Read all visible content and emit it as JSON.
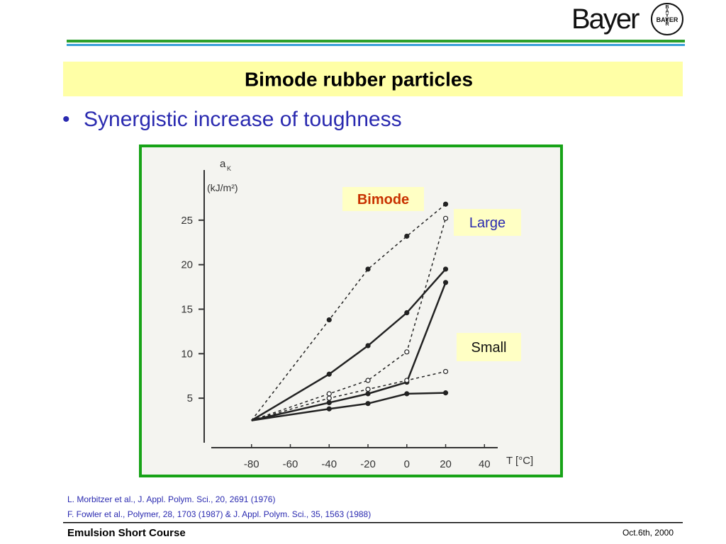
{
  "logo": {
    "name": "Bayer",
    "emblem": "BAYER"
  },
  "header": {
    "title": "Bimode rubber particles",
    "bullet": "Synergistic increase of toughness"
  },
  "chart_data": {
    "type": "line",
    "y_label_symbol": "a",
    "y_label_subscript": "K",
    "y_label_unit": "(kJ/m²)",
    "x_label": "T [°C]",
    "xlim": [
      -100,
      45
    ],
    "xticks": [
      -80,
      -60,
      -40,
      -20,
      0,
      20,
      40
    ],
    "ylim": [
      0,
      30
    ],
    "yticks": [
      5,
      10,
      15,
      20,
      25
    ],
    "annotations": [
      {
        "text": "Bimode",
        "color": "#c83200"
      },
      {
        "text": "Large",
        "color": "#2a2ab0"
      },
      {
        "text": "Small",
        "color": "#111111"
      }
    ],
    "x": [
      -80,
      -40,
      -20,
      0,
      20
    ],
    "series": [
      {
        "color": "#222222",
        "dashed": true,
        "marker": "filled",
        "values": [
          2.5,
          13.8,
          19.5,
          23.2,
          26.8
        ]
      },
      {
        "color": "#222222",
        "dashed": false,
        "marker": "filled",
        "values": [
          2.5,
          7.7,
          10.9,
          14.6,
          19.5
        ]
      },
      {
        "color": "#222222",
        "dashed": true,
        "marker": "open",
        "values": [
          2.5,
          5.5,
          7.0,
          10.2,
          25.2
        ]
      },
      {
        "color": "#222222",
        "dashed": false,
        "marker": "filled",
        "values": [
          2.5,
          4.5,
          5.5,
          6.8,
          18.0
        ]
      },
      {
        "color": "#222222",
        "dashed": true,
        "marker": "open",
        "values": [
          2.5,
          5.0,
          6.0,
          7.0,
          8.0
        ]
      },
      {
        "color": "#222222",
        "dashed": false,
        "marker": "filled",
        "values": [
          2.5,
          3.8,
          4.4,
          5.5,
          5.6
        ]
      }
    ]
  },
  "references": [
    "L. Morbitzer et al., J. Appl. Polym. Sci., 20, 2691 (1976)",
    "F. Fowler et al., Polymer, 28, 1703 (1987) & J. Appl. Polym. Sci., 35, 1563 (1988)"
  ],
  "footer": {
    "course": "Emulsion Short Course",
    "date": "Oct.6th, 2000"
  }
}
